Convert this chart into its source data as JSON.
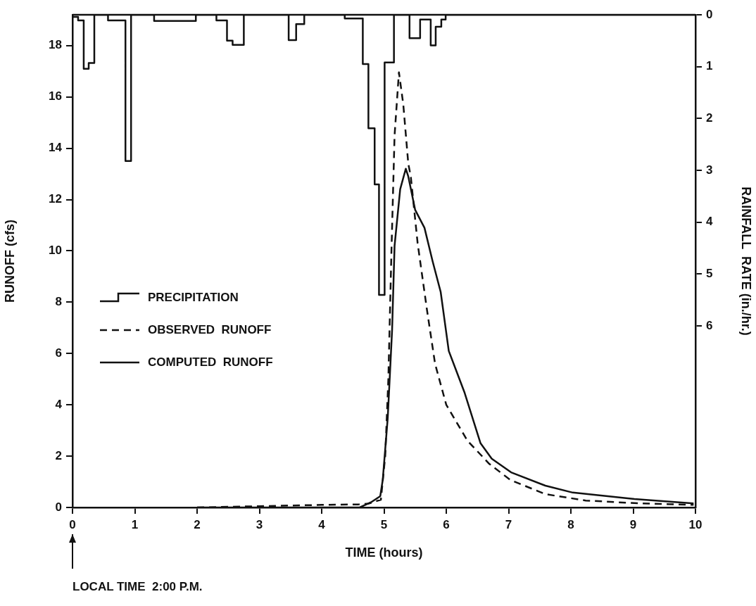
{
  "chart_data": {
    "type": "line",
    "xlabel": "TIME (hours)",
    "ylabel": "RUNOFF (cfs)",
    "y2label": "RAINFALL  RATE (in./hr.)",
    "xlim": [
      0,
      10
    ],
    "xticks": [
      0,
      1,
      2,
      3,
      4,
      5,
      6,
      7,
      8,
      9,
      10
    ],
    "ylim": [
      0,
      19.2
    ],
    "yticks": [
      0,
      2,
      4,
      6,
      8,
      10,
      12,
      14,
      16,
      18
    ],
    "y2lim": [
      9.5,
      0
    ],
    "y2ticks": [
      0,
      1,
      2,
      3,
      4,
      5,
      6
    ],
    "grid": false,
    "legend": "left",
    "marker": "none",
    "annotations": [
      "LOCAL TIME  2:00 P.M."
    ],
    "series": [
      {
        "name": "PRECIPITATION",
        "type": "step",
        "axis": "y2",
        "color": "#111111",
        "line_style": "solid",
        "x": [
          0,
          0.09,
          0.18,
          0.26,
          0.35,
          0.57,
          0.85,
          0.94,
          1.31,
          1.98,
          2.31,
          2.48,
          2.57,
          2.75,
          3.47,
          3.59,
          3.72,
          4.37,
          4.66,
          4.75,
          4.85,
          4.92,
          5.01,
          5.16,
          5.41,
          5.58,
          5.75,
          5.83,
          5.92,
          5.99,
          10
        ],
        "values": [
          0.04,
          0.11,
          1.04,
          0.93,
          0,
          0.11,
          2.82,
          0,
          0.12,
          0,
          0.11,
          0.5,
          0.58,
          0,
          0.49,
          0.18,
          0,
          0.07,
          0.95,
          2.19,
          3.27,
          5.4,
          0.92,
          0,
          0.45,
          0.09,
          0.59,
          0.23,
          0.09,
          0,
          0
        ]
      },
      {
        "name": "OBSERVED  RUNOFF",
        "type": "line",
        "color": "#111111",
        "line_style": "dashed",
        "x": [
          2,
          3,
          4,
          4.6,
          4.75,
          4.95,
          5.02,
          5.07,
          5.12,
          5.17,
          5.24,
          5.31,
          5.39,
          5.43,
          5.54,
          5.69,
          5.82,
          6.0,
          6.34,
          6.69,
          7.03,
          7.59,
          8.24,
          9.1,
          9.97
        ],
        "values": [
          0,
          0.05,
          0.1,
          0.12,
          0.15,
          0.3,
          2.0,
          5.0,
          10.0,
          14.5,
          16.96,
          15.7,
          13.4,
          12.9,
          10.3,
          7.7,
          5.6,
          4.0,
          2.6,
          1.7,
          1.07,
          0.52,
          0.27,
          0.16,
          0.1
        ]
      },
      {
        "name": "COMPUTED  RUNOFF",
        "type": "line",
        "color": "#111111",
        "line_style": "solid",
        "x": [
          2,
          4.61,
          4.79,
          4.94,
          4.98,
          5.06,
          5.13,
          5.17,
          5.26,
          5.35,
          5.39,
          5.5,
          5.65,
          5.78,
          5.91,
          6.04,
          6.29,
          6.55,
          6.73,
          7.04,
          7.59,
          8.03,
          9.02,
          9.97
        ],
        "values": [
          0,
          0,
          0.2,
          0.44,
          1.07,
          3.48,
          6.9,
          10.2,
          12.4,
          13.2,
          12.9,
          11.6,
          10.9,
          9.6,
          8.4,
          6.1,
          4.5,
          2.5,
          1.9,
          1.37,
          0.85,
          0.58,
          0.33,
          0.16
        ]
      }
    ]
  }
}
